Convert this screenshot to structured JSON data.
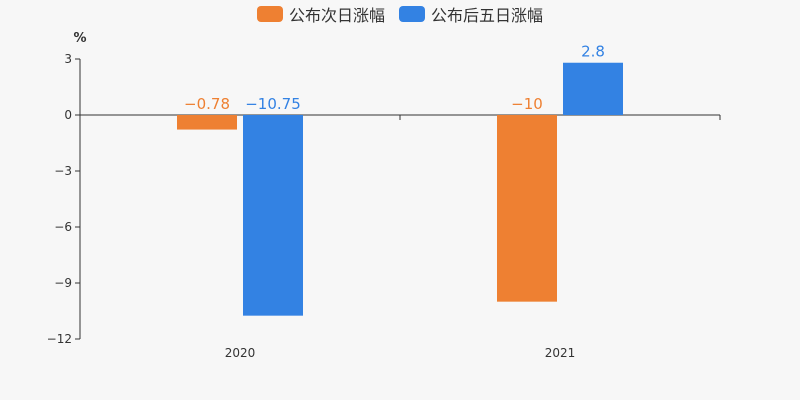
{
  "chart_data": {
    "type": "bar",
    "categories": [
      "2020",
      "2021"
    ],
    "series": [
      {
        "name": "公布次日涨幅",
        "values": [
          -0.78,
          -10
        ],
        "value_labels": [
          "−0.78",
          "−10"
        ],
        "color": "#ee8032"
      },
      {
        "name": "公布后五日涨幅",
        "values": [
          -10.75,
          2.8
        ],
        "value_labels": [
          "−10.75",
          "2.8"
        ],
        "color": "#3382e3"
      }
    ],
    "ylabel": "%",
    "ylim": [
      -12,
      3
    ],
    "yticks": [
      3,
      0,
      -3,
      -6,
      -9,
      -12
    ],
    "ytick_labels": [
      "3",
      "0",
      "−3",
      "−6",
      "−9",
      "−12"
    ],
    "grid": false,
    "legend_position": "top-center",
    "axis_color": "#333333",
    "background": "#f7f7f7"
  }
}
